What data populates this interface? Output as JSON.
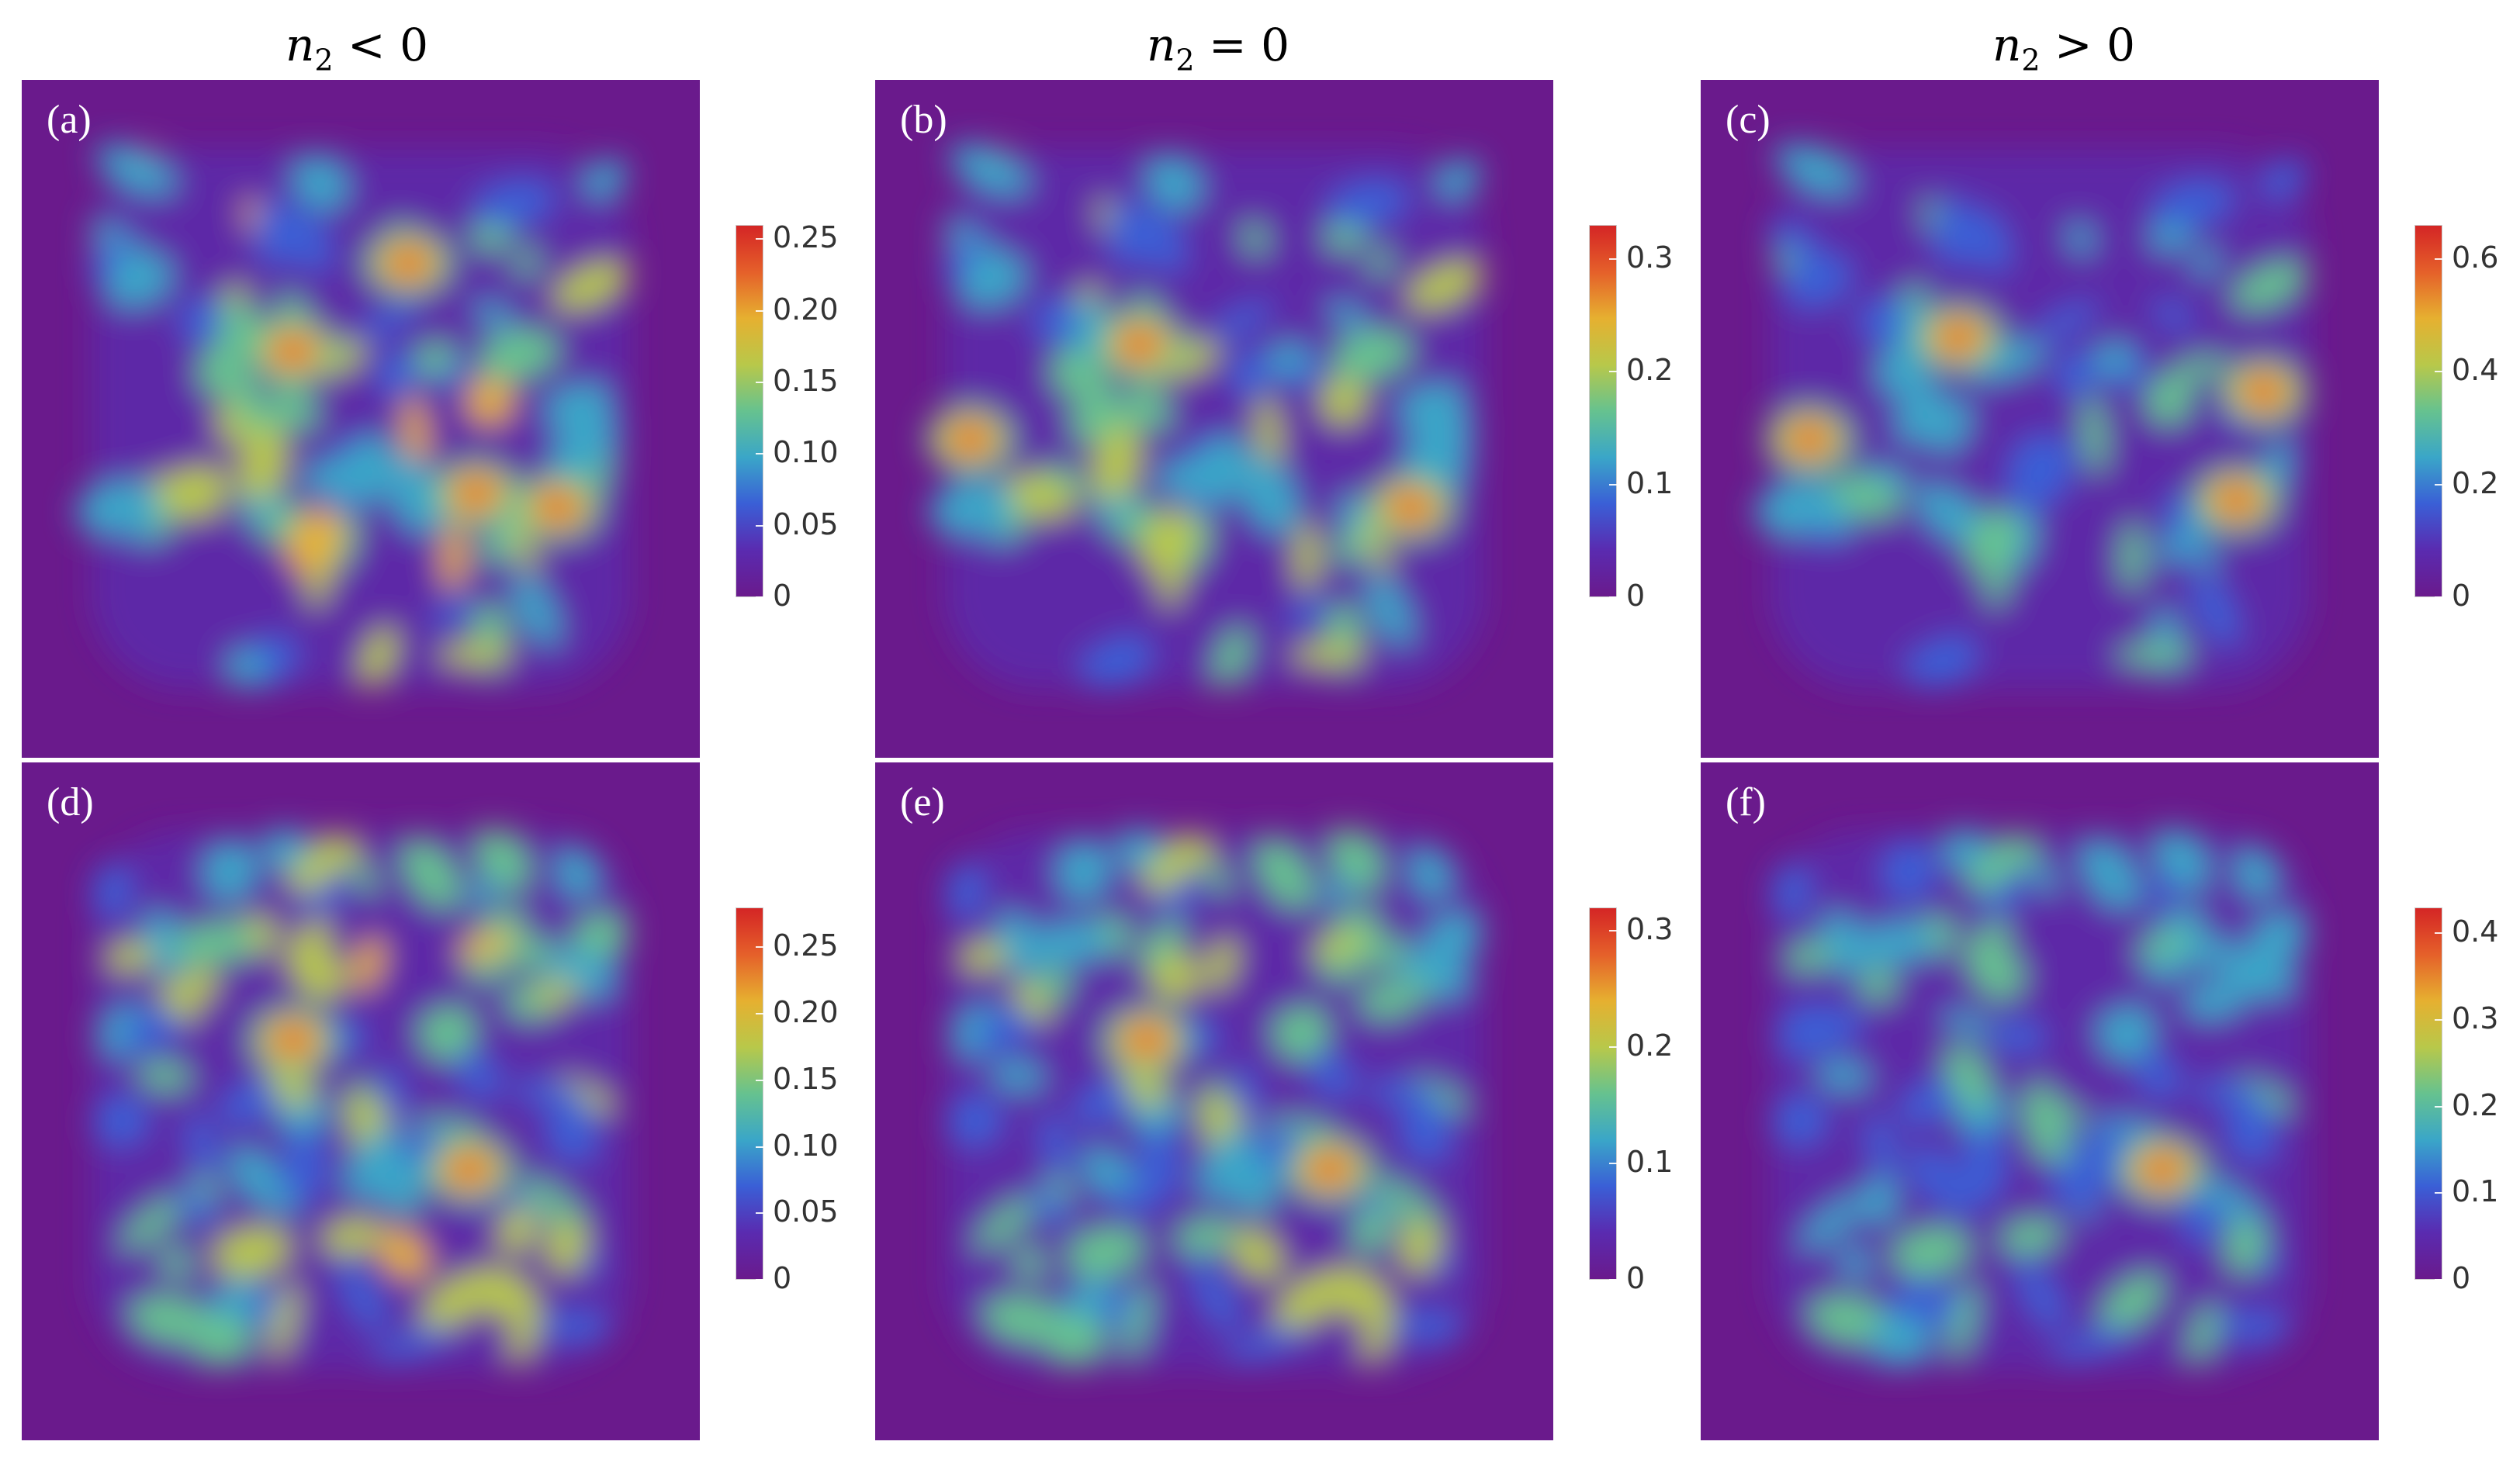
{
  "column_titles": [
    {
      "var": "n",
      "sub": "2",
      "rel": "<",
      "val": "0"
    },
    {
      "var": "n",
      "sub": "2",
      "rel": "=",
      "val": "0"
    },
    {
      "var": "n",
      "sub": "2",
      "rel": ">",
      "val": "0"
    }
  ],
  "chart_data": [
    {
      "type": "heatmap",
      "label": "(a)",
      "colorbar": {
        "min": 0,
        "max": 0.26,
        "ticks": [
          "0",
          "0.05",
          "0.10",
          "0.15",
          "0.20",
          "0.25"
        ]
      }
    },
    {
      "type": "heatmap",
      "label": "(b)",
      "colorbar": {
        "min": 0,
        "max": 0.33,
        "ticks": [
          "0",
          "0.1",
          "0.2",
          "0.3"
        ]
      }
    },
    {
      "type": "heatmap",
      "label": "(c)",
      "colorbar": {
        "min": 0,
        "max": 0.66,
        "ticks": [
          "0",
          "0.2",
          "0.4",
          "0.6"
        ]
      }
    },
    {
      "type": "heatmap",
      "label": "(d)",
      "colorbar": {
        "min": 0,
        "max": 0.28,
        "ticks": [
          "0",
          "0.05",
          "0.10",
          "0.15",
          "0.20",
          "0.25"
        ]
      }
    },
    {
      "type": "heatmap",
      "label": "(e)",
      "colorbar": {
        "min": 0,
        "max": 0.32,
        "ticks": [
          "0",
          "0.1",
          "0.2",
          "0.3"
        ]
      }
    },
    {
      "type": "heatmap",
      "label": "(f)",
      "colorbar": {
        "min": 0,
        "max": 0.43,
        "ticks": [
          "0",
          "0.1",
          "0.2",
          "0.3",
          "0.4"
        ]
      }
    }
  ],
  "colormap": {
    "name": "rainbow",
    "stops": [
      "#6a1a8c",
      "#5a2bb0",
      "#3a5fd6",
      "#3aa6c8",
      "#66c28f",
      "#b8c84a",
      "#e6b030",
      "#e5602a",
      "#d42525"
    ]
  }
}
